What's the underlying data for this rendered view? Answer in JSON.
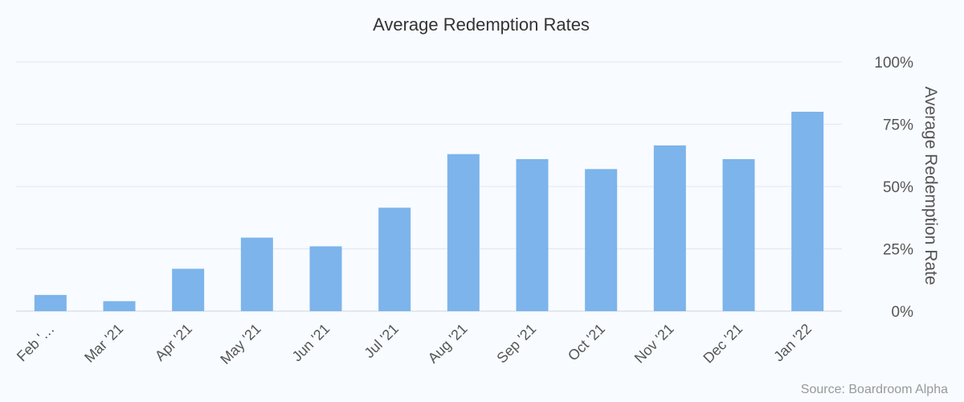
{
  "chart_data": {
    "type": "bar",
    "title": "Average Redemption Rates",
    "ylabel": "Average Redemption Rate",
    "xlabel": "",
    "categories": [
      "Feb '…",
      "Mar '21",
      "Apr '21",
      "May '21",
      "Jun '21",
      "Jul '21",
      "Aug '21",
      "Sep '21",
      "Oct '21",
      "Nov '21",
      "Dec '21",
      "Jan '22"
    ],
    "values": [
      6.5,
      4,
      17,
      29.5,
      26,
      41.5,
      63,
      61,
      57,
      66.5,
      61,
      80
    ],
    "ylim": [
      0,
      100
    ],
    "yticks": [
      0,
      25,
      50,
      75,
      100
    ],
    "ytick_labels": [
      "0%",
      "25%",
      "50%",
      "75%",
      "100%"
    ],
    "y_axis_side": "right",
    "grid": true,
    "legend": "none",
    "bar_color": "#7cb4eb",
    "credit": "Source: Boardroom Alpha"
  }
}
